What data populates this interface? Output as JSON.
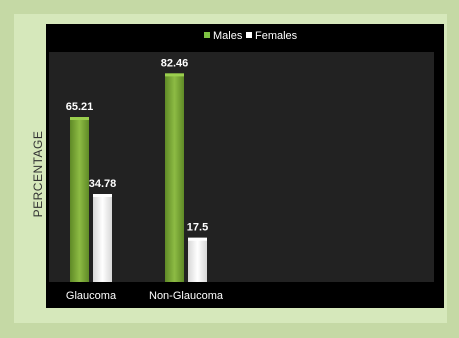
{
  "chart_data": {
    "type": "bar",
    "title": "",
    "xlabel": "",
    "ylabel": "PERCENTAGE",
    "categories": [
      "Glaucoma",
      "Non-Glaucoma"
    ],
    "series": [
      {
        "name": "Males",
        "values": [
          65.21,
          82.46
        ],
        "color": "#7aa23a"
      },
      {
        "name": "Females",
        "values": [
          34.78,
          17.5
        ],
        "color": "#f2f2f2"
      }
    ],
    "ylim": [
      0,
      100
    ],
    "grid": false,
    "legend_position": "top-center",
    "background": "#000000"
  }
}
